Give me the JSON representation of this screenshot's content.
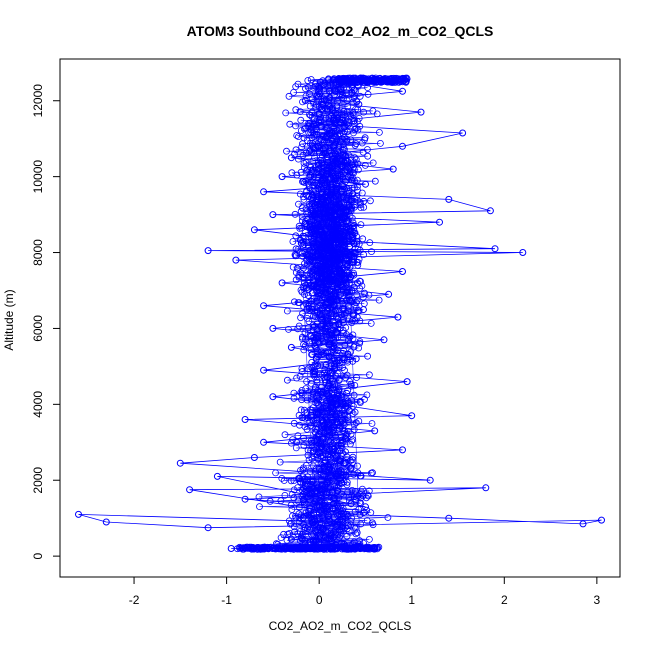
{
  "chart_data": {
    "type": "scatter",
    "title": "ATOM3 Southbound CO2_AO2_m_CO2_QCLS",
    "xlabel": "CO2_AO2_m_CO2_QCLS",
    "ylabel": "Altitude (m)",
    "xlim": [
      -2.8,
      3.25
    ],
    "ylim": [
      -550,
      13100
    ],
    "x_ticks": [
      -2,
      -1,
      0,
      1,
      2,
      3
    ],
    "x_tick_labels": [
      "-2",
      "-1",
      "0",
      "1",
      "2",
      "3"
    ],
    "y_ticks": [
      0,
      2000,
      4000,
      6000,
      8000,
      10000,
      12000
    ],
    "y_tick_labels": [
      "0",
      "2000",
      "4000",
      "6000",
      "8000",
      "10000",
      "12000"
    ],
    "grid": false,
    "marker": "open-circle",
    "connected": true,
    "color": "#0000ff",
    "series": [
      {
        "values": [
          [
            0.05,
            180
          ],
          [
            -0.95,
            200
          ],
          [
            0.6,
            200
          ],
          [
            -0.3,
            450
          ],
          [
            0.2,
            900
          ],
          [
            -2.6,
            1100
          ],
          [
            -2.3,
            900
          ],
          [
            -1.2,
            750
          ],
          [
            3.05,
            950
          ],
          [
            2.85,
            850
          ],
          [
            1.4,
            1000
          ],
          [
            0.3,
            1100
          ],
          [
            -1.4,
            1750
          ],
          [
            1.8,
            1800
          ],
          [
            -0.8,
            1500
          ],
          [
            0.5,
            1300
          ],
          [
            -1.1,
            2100
          ],
          [
            1.2,
            2000
          ],
          [
            -1.5,
            2450
          ],
          [
            -0.7,
            2600
          ],
          [
            0.9,
            2800
          ],
          [
            -0.6,
            3000
          ],
          [
            0.6,
            3300
          ],
          [
            -0.8,
            3600
          ],
          [
            1.0,
            3700
          ],
          [
            0.2,
            4000
          ],
          [
            -0.5,
            4200
          ],
          [
            0.95,
            4600
          ],
          [
            -0.6,
            4900
          ],
          [
            0.4,
            5200
          ],
          [
            -0.3,
            5500
          ],
          [
            0.7,
            5700
          ],
          [
            -0.5,
            6000
          ],
          [
            0.85,
            6300
          ],
          [
            -0.6,
            6600
          ],
          [
            0.75,
            6900
          ],
          [
            -0.4,
            7200
          ],
          [
            0.9,
            7500
          ],
          [
            -0.9,
            7800
          ],
          [
            2.2,
            8000
          ],
          [
            -1.2,
            8050
          ],
          [
            1.9,
            8100
          ],
          [
            0.3,
            8300
          ],
          [
            -0.7,
            8600
          ],
          [
            1.3,
            8800
          ],
          [
            -0.5,
            9000
          ],
          [
            1.85,
            9100
          ],
          [
            1.4,
            9400
          ],
          [
            -0.6,
            9600
          ],
          [
            0.5,
            9800
          ],
          [
            -0.4,
            10000
          ],
          [
            0.8,
            10200
          ],
          [
            -0.3,
            10500
          ],
          [
            0.9,
            10800
          ],
          [
            1.55,
            11150
          ],
          [
            -0.1,
            11400
          ],
          [
            1.1,
            11700
          ],
          [
            -0.15,
            12000
          ],
          [
            0.9,
            12250
          ],
          [
            0.1,
            12550
          ],
          [
            0.45,
            12600
          ]
        ]
      }
    ]
  }
}
